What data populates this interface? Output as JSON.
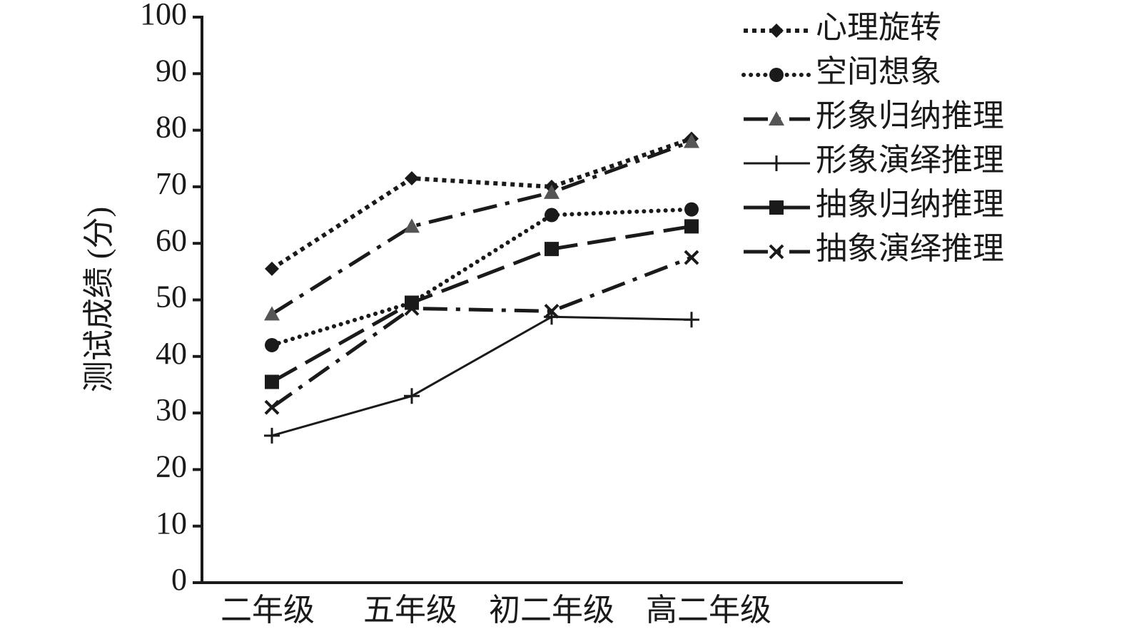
{
  "chart_data": {
    "type": "line",
    "ylabel": "测试成绩 (分)",
    "categories": [
      "二年级",
      "五年级",
      "初二年级",
      "高二年级"
    ],
    "ylim": [
      0,
      100
    ],
    "yticks": [
      0,
      10,
      20,
      30,
      40,
      50,
      60,
      70,
      80,
      90,
      100
    ],
    "legend": "top-right",
    "series": [
      {
        "name": "心理旋转",
        "color": "#1a1a1a",
        "dash": "dotted",
        "marker": "diamond",
        "values": [
          55.5,
          71.5,
          70,
          78.5
        ]
      },
      {
        "name": "空间想象",
        "color": "#1a1a1a",
        "dash": "round-dotted",
        "marker": "circle",
        "values": [
          42,
          49.5,
          65,
          66
        ]
      },
      {
        "name": "形象归纳推理",
        "color": "#1a1a1a",
        "dash": "dash-dot",
        "marker": "triangle",
        "values": [
          47.5,
          63,
          69,
          78
        ]
      },
      {
        "name": "形象演绎推理",
        "color": "#1a1a1a",
        "dash": "solid",
        "marker": "plus",
        "values": [
          26,
          33,
          47,
          46.5
        ]
      },
      {
        "name": "抽象归纳推理",
        "color": "#1a1a1a",
        "dash": "dashed",
        "marker": "square",
        "values": [
          35.5,
          49.5,
          59,
          63
        ]
      },
      {
        "name": "抽象演绎推理",
        "color": "#1a1a1a",
        "dash": "dash-dot",
        "marker": "cross",
        "values": [
          31,
          48.5,
          48,
          57.5
        ]
      }
    ]
  }
}
